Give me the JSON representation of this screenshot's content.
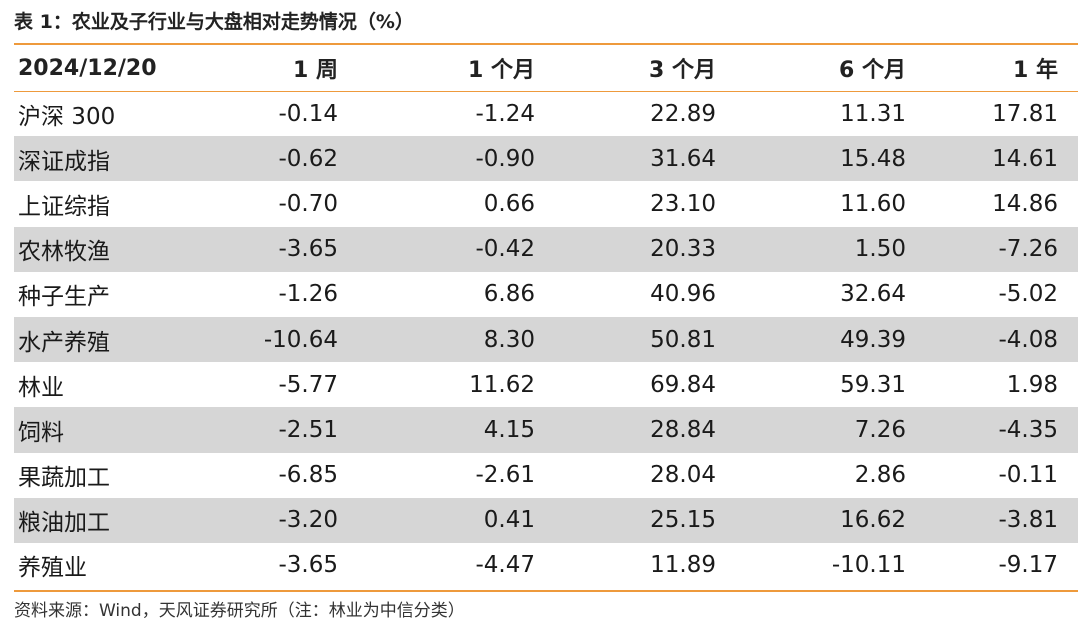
{
  "title": "表 1：农业及子行业与大盘相对走势情况（%）",
  "header": {
    "date": "2024/12/20",
    "cols": [
      "1 周",
      "1 个月",
      "3 个月",
      "6 个月",
      "1 年"
    ]
  },
  "rows": [
    {
      "name": "沪深 300",
      "values": [
        "-0.14",
        "-1.24",
        "22.89",
        "11.31",
        "17.81"
      ]
    },
    {
      "name": "深证成指",
      "values": [
        "-0.62",
        "-0.90",
        "31.64",
        "15.48",
        "14.61"
      ]
    },
    {
      "name": "上证综指",
      "values": [
        "-0.70",
        "0.66",
        "23.10",
        "11.60",
        "14.86"
      ]
    },
    {
      "name": "农林牧渔",
      "values": [
        "-3.65",
        "-0.42",
        "20.33",
        "1.50",
        "-7.26"
      ]
    },
    {
      "name": "种子生产",
      "values": [
        "-1.26",
        "6.86",
        "40.96",
        "32.64",
        "-5.02"
      ]
    },
    {
      "name": "水产养殖",
      "values": [
        "-10.64",
        "8.30",
        "50.81",
        "49.39",
        "-4.08"
      ]
    },
    {
      "name": "林业",
      "values": [
        "-5.77",
        "11.62",
        "69.84",
        "59.31",
        "1.98"
      ]
    },
    {
      "name": "饲料",
      "values": [
        "-2.51",
        "4.15",
        "28.84",
        "7.26",
        "-4.35"
      ]
    },
    {
      "name": "果蔬加工",
      "values": [
        "-6.85",
        "-2.61",
        "28.04",
        "2.86",
        "-0.11"
      ]
    },
    {
      "name": "粮油加工",
      "values": [
        "-3.20",
        "0.41",
        "25.15",
        "16.62",
        "-3.81"
      ]
    },
    {
      "name": "养殖业",
      "values": [
        "-3.65",
        "-4.47",
        "11.89",
        "-10.11",
        "-9.17"
      ]
    }
  ],
  "footnote": "资料来源：Wind，天风证券研究所（注：林业为中信分类）",
  "colors": {
    "accent_rule": "#ee9a3c",
    "shaded_row": "#d6d6d6"
  }
}
